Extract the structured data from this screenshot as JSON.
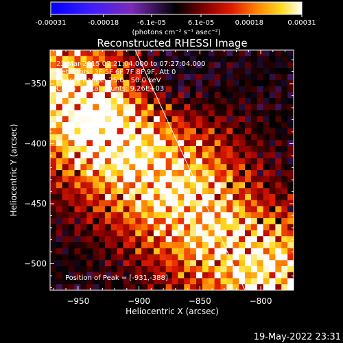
{
  "colorbar": {
    "min": -0.00031,
    "max": 0.00031,
    "tick_labels": [
      "-0.00031",
      "-0.00018",
      "-6.1e-05",
      "6.1e-05",
      "0.00018",
      "0.00031"
    ],
    "unit_label": "(photons cm⁻² s⁻¹ asec⁻²)"
  },
  "chart_data": {
    "type": "heatmap",
    "title": "Reconstructed RHESSI Image",
    "xlabel": "Heliocentric X (arcsec)",
    "ylabel": "Heliocentric Y (arcsec)",
    "xlim": [
      -973,
      -773
    ],
    "ylim": [
      -522,
      -322
    ],
    "x_ticks": [
      -950,
      -900,
      -850,
      -800
    ],
    "y_ticks": [
      -350,
      -400,
      -450,
      -500
    ],
    "annotations": [
      "23-Mar-2015 07:21:04.000 to 07:27:04.000",
      "Detectors: 3F 5F 6F 7F 8F 9F, Att 0",
      "Energy Range: 25.0 - 50.0 keV",
      "Clean    Total counts: 9.26E+03"
    ],
    "peak_label": "Position of Peak = [-931,-388]",
    "limb_line": [
      [
        -903,
        -322
      ],
      [
        -813,
        -522
      ]
    ],
    "colors": {
      "low": "#0000ff",
      "mid": "#000000",
      "high": "#ffffff"
    }
  },
  "footer": {
    "timestamp": "19-May-2022 23:31"
  }
}
